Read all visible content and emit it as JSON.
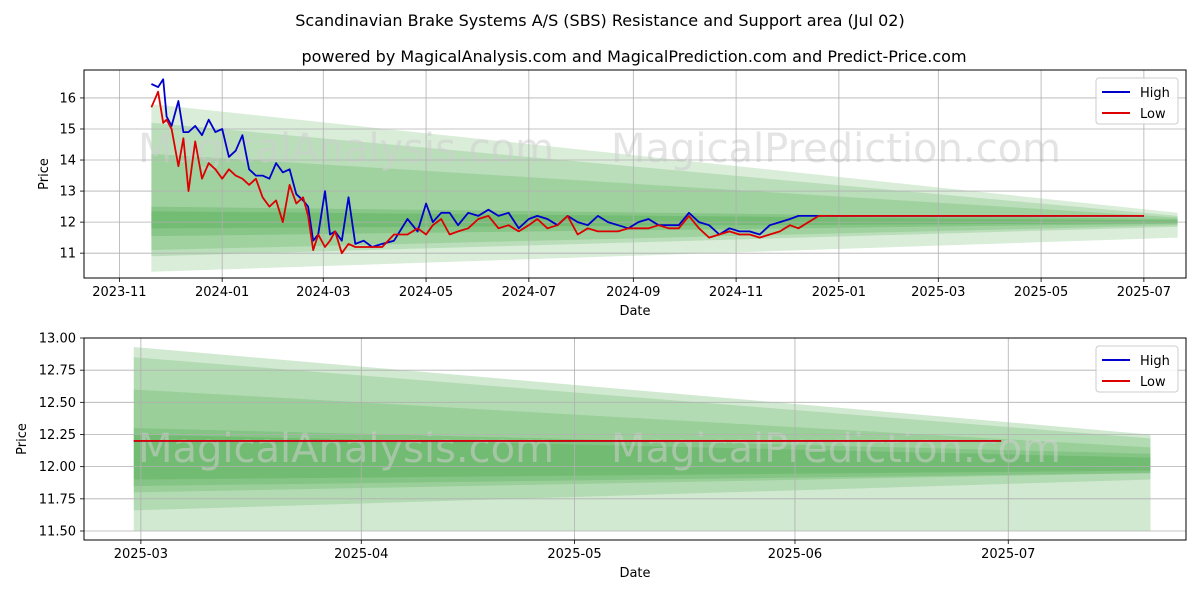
{
  "figure": {
    "title": "Scandinavian Brake Systems A/S (SBS) Resistance and Support area (Jul 02)",
    "subtitle": "powered by MagicalAnalysis.com and MagicalPrediction.com and Predict-Price.com",
    "watermarks": [
      "MagicalAnalysis.com",
      "MagicalPrediction.com"
    ]
  },
  "colors": {
    "high": "#0000cc",
    "low": "#dd0000",
    "band": "#2e9b2e",
    "grid": "#b0b0b0"
  },
  "chart_data": [
    {
      "type": "line",
      "xlabel": "Date",
      "ylabel": "Price",
      "x_tick_labels": [
        "2023-11",
        "2024-01",
        "2024-03",
        "2024-05",
        "2024-07",
        "2024-09",
        "2024-11",
        "2025-01",
        "2025-03",
        "2025-05",
        "2025-07"
      ],
      "x_ticks": [
        "2023-11-01",
        "2024-01-01",
        "2024-03-01",
        "2024-05-01",
        "2024-07-01",
        "2024-09-01",
        "2024-11-01",
        "2025-01-01",
        "2025-03-01",
        "2025-05-01",
        "2025-07-01"
      ],
      "xlim": [
        "2023-10-11",
        "2025-07-26"
      ],
      "y_tick_labels": [
        "11",
        "12",
        "13",
        "14",
        "15",
        "16"
      ],
      "y_ticks": [
        11,
        12,
        13,
        14,
        15,
        16
      ],
      "ylim": [
        10.2,
        16.9
      ],
      "grid": true,
      "legend": {
        "position": "top-right",
        "entries": [
          "High",
          "Low"
        ]
      },
      "series": [
        {
          "name": "High",
          "color": "#0000cc",
          "x": [
            "2023-11-20",
            "2023-11-24",
            "2023-11-27",
            "2023-11-29",
            "2023-12-02",
            "2023-12-06",
            "2023-12-09",
            "2023-12-12",
            "2023-12-16",
            "2023-12-20",
            "2023-12-24",
            "2023-12-28",
            "2024-01-01",
            "2024-01-05",
            "2024-01-09",
            "2024-01-13",
            "2024-01-17",
            "2024-01-21",
            "2024-01-25",
            "2024-01-29",
            "2024-02-02",
            "2024-02-06",
            "2024-02-10",
            "2024-02-14",
            "2024-02-18",
            "2024-02-21",
            "2024-02-24",
            "2024-02-27",
            "2024-03-02",
            "2024-03-05",
            "2024-03-08",
            "2024-03-12",
            "2024-03-16",
            "2024-03-20",
            "2024-03-25",
            "2024-03-30",
            "2024-04-05",
            "2024-04-12",
            "2024-04-20",
            "2024-04-26",
            "2024-05-01",
            "2024-05-05",
            "2024-05-10",
            "2024-05-15",
            "2024-05-20",
            "2024-05-26",
            "2024-06-01",
            "2024-06-07",
            "2024-06-13",
            "2024-06-19",
            "2024-06-25",
            "2024-07-01",
            "2024-07-06",
            "2024-07-12",
            "2024-07-18",
            "2024-07-24",
            "2024-07-30",
            "2024-08-05",
            "2024-08-11",
            "2024-08-17",
            "2024-08-23",
            "2024-08-29",
            "2024-09-04",
            "2024-09-10",
            "2024-09-16",
            "2024-09-22",
            "2024-09-28",
            "2024-10-04",
            "2024-10-10",
            "2024-10-16",
            "2024-10-22",
            "2024-10-28",
            "2024-11-03",
            "2024-11-09",
            "2024-11-15",
            "2024-11-21",
            "2024-11-27",
            "2024-12-03",
            "2024-12-08",
            "2024-12-20",
            "2025-01-15",
            "2025-02-15",
            "2025-03-15",
            "2025-04-15",
            "2025-05-15",
            "2025-06-15",
            "2025-07-01"
          ],
          "values": [
            16.45,
            16.35,
            16.6,
            15.4,
            15.1,
            15.9,
            14.9,
            14.9,
            15.1,
            14.8,
            15.3,
            14.9,
            15.0,
            14.1,
            14.3,
            14.8,
            13.7,
            13.5,
            13.5,
            13.4,
            13.9,
            13.6,
            13.7,
            12.9,
            12.7,
            12.5,
            11.4,
            11.6,
            13.0,
            11.6,
            11.7,
            11.4,
            12.8,
            11.3,
            11.4,
            11.2,
            11.3,
            11.4,
            12.1,
            11.7,
            12.6,
            12.0,
            12.3,
            12.3,
            11.9,
            12.3,
            12.2,
            12.4,
            12.2,
            12.3,
            11.8,
            12.1,
            12.2,
            12.1,
            11.9,
            12.2,
            12.0,
            11.9,
            12.2,
            12.0,
            11.9,
            11.8,
            12.0,
            12.1,
            11.9,
            11.9,
            11.9,
            12.3,
            12.0,
            11.9,
            11.6,
            11.8,
            11.7,
            11.7,
            11.6,
            11.9,
            12.0,
            12.1,
            12.2,
            12.2,
            12.2,
            12.2,
            12.2,
            12.2,
            12.2,
            12.2,
            12.2
          ]
        },
        {
          "name": "Low",
          "color": "#dd0000",
          "x": [
            "2023-11-20",
            "2023-11-24",
            "2023-11-27",
            "2023-11-29",
            "2023-12-02",
            "2023-12-06",
            "2023-12-09",
            "2023-12-12",
            "2023-12-16",
            "2023-12-20",
            "2023-12-24",
            "2023-12-28",
            "2024-01-01",
            "2024-01-05",
            "2024-01-09",
            "2024-01-13",
            "2024-01-17",
            "2024-01-21",
            "2024-01-25",
            "2024-01-29",
            "2024-02-02",
            "2024-02-06",
            "2024-02-10",
            "2024-02-14",
            "2024-02-18",
            "2024-02-21",
            "2024-02-24",
            "2024-02-27",
            "2024-03-02",
            "2024-03-05",
            "2024-03-08",
            "2024-03-12",
            "2024-03-16",
            "2024-03-20",
            "2024-03-25",
            "2024-03-30",
            "2024-04-05",
            "2024-04-12",
            "2024-04-20",
            "2024-04-26",
            "2024-05-01",
            "2024-05-05",
            "2024-05-10",
            "2024-05-15",
            "2024-05-20",
            "2024-05-26",
            "2024-06-01",
            "2024-06-07",
            "2024-06-13",
            "2024-06-19",
            "2024-06-25",
            "2024-07-01",
            "2024-07-06",
            "2024-07-12",
            "2024-07-18",
            "2024-07-24",
            "2024-07-30",
            "2024-08-05",
            "2024-08-11",
            "2024-08-17",
            "2024-08-23",
            "2024-08-29",
            "2024-09-04",
            "2024-09-10",
            "2024-09-16",
            "2024-09-22",
            "2024-09-28",
            "2024-10-04",
            "2024-10-10",
            "2024-10-16",
            "2024-10-22",
            "2024-10-28",
            "2024-11-03",
            "2024-11-09",
            "2024-11-15",
            "2024-11-21",
            "2024-11-27",
            "2024-12-03",
            "2024-12-08",
            "2024-12-20",
            "2025-01-15",
            "2025-02-15",
            "2025-03-15",
            "2025-04-15",
            "2025-05-15",
            "2025-06-15",
            "2025-07-01"
          ],
          "values": [
            15.7,
            16.2,
            15.2,
            15.3,
            15.0,
            13.8,
            14.7,
            13.0,
            14.6,
            13.4,
            13.9,
            13.7,
            13.4,
            13.7,
            13.5,
            13.4,
            13.2,
            13.4,
            12.8,
            12.5,
            12.7,
            12.0,
            13.2,
            12.6,
            12.8,
            12.2,
            11.1,
            11.6,
            11.2,
            11.4,
            11.7,
            11.0,
            11.3,
            11.2,
            11.2,
            11.2,
            11.2,
            11.6,
            11.6,
            11.8,
            11.6,
            11.9,
            12.1,
            11.6,
            11.7,
            11.8,
            12.1,
            12.2,
            11.8,
            11.9,
            11.7,
            11.9,
            12.1,
            11.8,
            11.9,
            12.2,
            11.6,
            11.8,
            11.7,
            11.7,
            11.7,
            11.8,
            11.8,
            11.8,
            11.9,
            11.8,
            11.8,
            12.2,
            11.8,
            11.5,
            11.6,
            11.7,
            11.6,
            11.6,
            11.5,
            11.6,
            11.7,
            11.9,
            11.8,
            12.2,
            12.2,
            12.2,
            12.2,
            12.2,
            12.2,
            12.2,
            12.2
          ]
        }
      ]
    },
    {
      "type": "line",
      "xlabel": "Date",
      "ylabel": "Price",
      "x_tick_labels": [
        "2025-03",
        "2025-04",
        "2025-05",
        "2025-06",
        "2025-07"
      ],
      "x_ticks": [
        "2025-03-01",
        "2025-04-01",
        "2025-05-01",
        "2025-06-01",
        "2025-07-01"
      ],
      "xlim": [
        "2025-02-21",
        "2025-07-26"
      ],
      "y_tick_labels": [
        "11.50",
        "11.75",
        "12.00",
        "12.25",
        "12.50",
        "12.75",
        "13.00"
      ],
      "y_ticks": [
        11.5,
        11.75,
        12.0,
        12.25,
        12.5,
        12.75,
        13.0
      ],
      "ylim": [
        11.43,
        13.0
      ],
      "grid": true,
      "legend": {
        "position": "top-right",
        "entries": [
          "High",
          "Low"
        ]
      },
      "series": [
        {
          "name": "High",
          "color": "#0000cc",
          "x": [
            "2025-02-28",
            "2025-06-30"
          ],
          "values": [
            12.2,
            12.2
          ]
        },
        {
          "name": "Low",
          "color": "#dd0000",
          "x": [
            "2025-02-28",
            "2025-06-30"
          ],
          "values": [
            12.2,
            12.2
          ]
        }
      ]
    }
  ]
}
